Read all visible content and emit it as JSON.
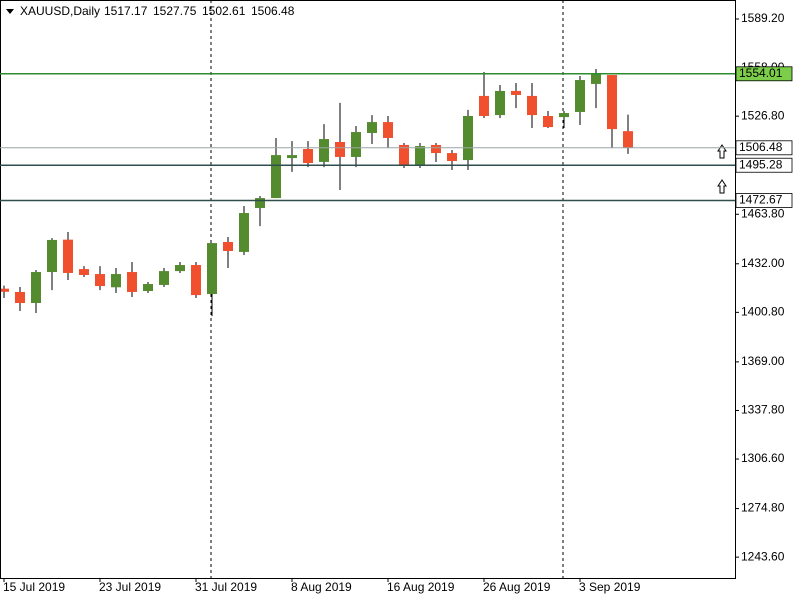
{
  "chart_data": {
    "type": "candlestick",
    "title": "XAUUSD,Daily",
    "categories": [
      "15 Jul 2019",
      null,
      null,
      null,
      null,
      null,
      "23 Jul 2019",
      null,
      null,
      null,
      null,
      null,
      "31 Jul 2019",
      null,
      null,
      null,
      null,
      null,
      "8 Aug 2019",
      null,
      null,
      null,
      null,
      null,
      "16 Aug 2019",
      null,
      null,
      null,
      null,
      null,
      "26 Aug 2019",
      null,
      null,
      null,
      null,
      null,
      "3 Sep 2019",
      null,
      null,
      null
    ],
    "open": [
      1416,
      1413.9,
      1406.8,
      1426.7,
      1447.5,
      1428.6,
      1425.4,
      1416.9,
      1426.7,
      1414.5,
      1418.4,
      1427.3,
      1431.2,
      1412.6,
      1446.0,
      1439.6,
      1467.8,
      1474.2,
      1499.9,
      1505.7,
      1497.4,
      1510.2,
      1500.6,
      1516.0,
      1523.0,
      1508.3,
      1495.4,
      1508.3,
      1503.1,
      1498.6,
      1539.8,
      1527.5,
      1543.0,
      1539.8,
      1526.9,
      1526.2,
      1529.5,
      1547.5,
      1553.2,
      1517.17
    ],
    "high": [
      1418,
      1417.1,
      1428.0,
      1448.5,
      1452.4,
      1430.5,
      1430.5,
      1429.3,
      1433.1,
      1420.3,
      1429.3,
      1433.1,
      1433.1,
      1445.3,
      1449.2,
      1469.1,
      1475.5,
      1512.8,
      1510.8,
      1510.8,
      1521.7,
      1535.3,
      1520.5,
      1527.5,
      1526.9,
      1509.6,
      1509.6,
      1509.6,
      1505.1,
      1530.8,
      1555.2,
      1546.8,
      1548.1,
      1548.1,
      1530.1,
      1530.1,
      1552.6,
      1557.1,
      1553.2,
      1527.75
    ],
    "low": [
      1410,
      1401.7,
      1400.4,
      1415.1,
      1421.6,
      1423.5,
      1415.1,
      1413.2,
      1410.7,
      1413.2,
      1417.1,
      1426.1,
      1410.0,
      1398.4,
      1429.3,
      1437.6,
      1456.2,
      1474.2,
      1491.0,
      1494.1,
      1494.1,
      1479.4,
      1494.1,
      1508.9,
      1506.3,
      1493.5,
      1493.5,
      1497.4,
      1492.2,
      1492.2,
      1525.6,
      1525.6,
      1532.0,
      1519.2,
      1519.2,
      1519.2,
      1521.1,
      1532.0,
      1506.3,
      1502.61
    ],
    "close": [
      1414,
      1406.8,
      1426.7,
      1447.3,
      1426.1,
      1424.8,
      1417.7,
      1425.4,
      1413.9,
      1419.0,
      1427.3,
      1431.2,
      1411.9,
      1445.3,
      1440.2,
      1464.6,
      1474.2,
      1501.8,
      1501.8,
      1496.7,
      1512.1,
      1500.6,
      1516.6,
      1523.0,
      1512.8,
      1495.4,
      1507.6,
      1503.1,
      1498.0,
      1526.9,
      1526.9,
      1543.0,
      1540.4,
      1527.5,
      1519.8,
      1528.8,
      1550.0,
      1554.5,
      1518.5,
      1506.48
    ],
    "up_color": "#558b2f",
    "down_color": "#f0502d",
    "levels": [
      {
        "value": 1554.01,
        "color": "#2e8b2e"
      },
      {
        "value": 1495.28,
        "color": "#2f4f4f"
      },
      {
        "value": 1472.67,
        "color": "#2f4f4f"
      }
    ],
    "ylim": [
      1230.2,
      1601.4
    ],
    "yticks": [
      {
        "value": 1589.2,
        "label": "1589.20"
      },
      {
        "value": 1558,
        "label": "1558.00"
      },
      {
        "value": 1526.8,
        "label": "1526.80"
      },
      {
        "value": 1463.8,
        "label": "1463.80"
      },
      {
        "value": 1432,
        "label": "1432.00"
      },
      {
        "value": 1400.8,
        "label": "1400.80"
      },
      {
        "value": 1369,
        "label": "1369.00"
      },
      {
        "value": 1337.8,
        "label": "1337.80"
      },
      {
        "value": 1306.6,
        "label": "1306.60"
      },
      {
        "value": 1274.8,
        "label": "1274.80"
      },
      {
        "value": 1243.6,
        "label": "1243.60"
      }
    ]
  }
}
